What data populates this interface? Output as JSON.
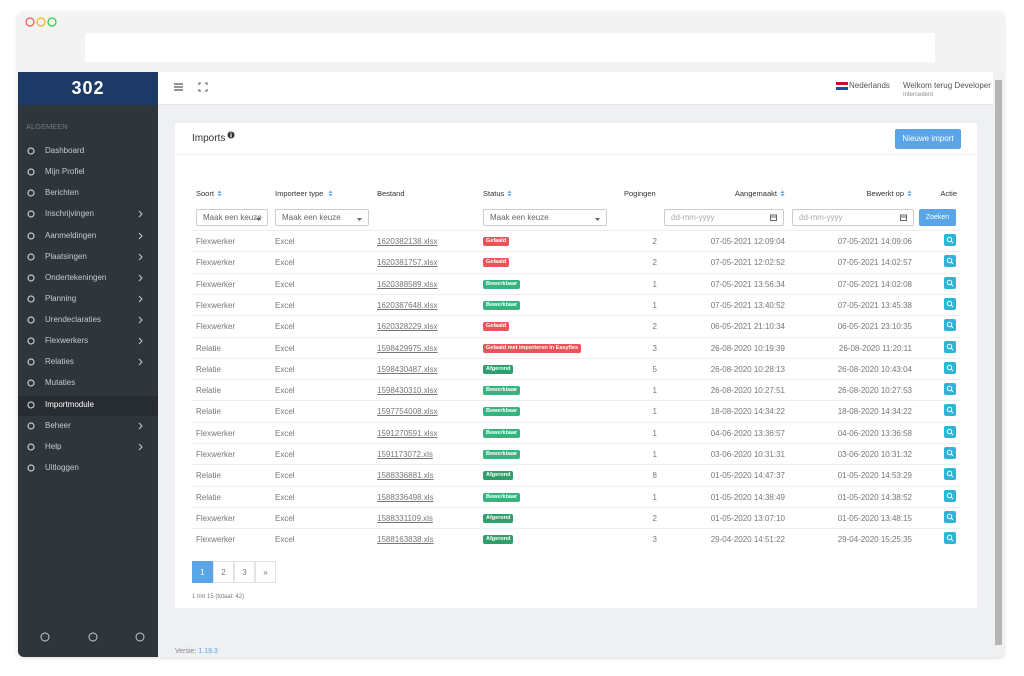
{
  "sidebar": {
    "logo": "302",
    "section": "ALGEMEEN",
    "items": [
      {
        "label": "Dashboard",
        "submenu": false
      },
      {
        "label": "Mijn Profiel",
        "submenu": false
      },
      {
        "label": "Berichten",
        "submenu": false
      },
      {
        "label": "Inschrijvingen",
        "submenu": true
      },
      {
        "label": "Aanmeldingen",
        "submenu": true
      },
      {
        "label": "Plaatsingen",
        "submenu": true
      },
      {
        "label": "Ondertekeningen",
        "submenu": true
      },
      {
        "label": "Planning",
        "submenu": true
      },
      {
        "label": "Urendeclaraties",
        "submenu": true
      },
      {
        "label": "Flexwerkers",
        "submenu": true
      },
      {
        "label": "Relaties",
        "submenu": true
      },
      {
        "label": "Mutaties",
        "submenu": false
      },
      {
        "label": "Importmodule",
        "submenu": false,
        "active": true
      },
      {
        "label": "Beheer",
        "submenu": true
      },
      {
        "label": "Help",
        "submenu": true
      },
      {
        "label": "Uitloggen",
        "submenu": false
      }
    ]
  },
  "header": {
    "language": "Nederlands",
    "welcome": "Welkom terug Developer",
    "role": "Intercedent"
  },
  "card": {
    "title": "Imports",
    "button": "Nieuwe import"
  },
  "table": {
    "columns": [
      "Soort",
      "Importeer type",
      "Bestand",
      "Status",
      "Pogingen",
      "Aangemaakt",
      "Bewerkt op",
      "Actie"
    ],
    "filters": {
      "select": [
        "Maak een keuze",
        "Maak een keuze",
        "Maak een keuze"
      ],
      "date": [
        "dd-mm-yyyy",
        "dd-mm-yyyy"
      ],
      "search": "Zoeken"
    },
    "rows": [
      [
        "Flexwerker",
        "Excel",
        "1620382138.xlsx",
        "Gefaald",
        "2",
        "07-05-2021 12:09:04",
        "07-05-2021 14:09:06"
      ],
      [
        "Flexwerker",
        "Excel",
        "1620381757.xlsx",
        "Gefaald",
        "2",
        "07-05-2021 12:02:52",
        "07-05-2021 14:02:57"
      ],
      [
        "Flexwerker",
        "Excel",
        "1620388589.xlsx",
        "Bewerkbaar",
        "1",
        "07-05-2021 13:56:34",
        "07-05-2021 14:02:08"
      ],
      [
        "Flexwerker",
        "Excel",
        "1620387648.xlsx",
        "Bewerkbaar",
        "1",
        "07-05-2021 13:40:52",
        "07-05-2021 13:45:38"
      ],
      [
        "Flexwerker",
        "Excel",
        "1620328229.xlsx",
        "Gefaald",
        "2",
        "06-05-2021 21:10:34",
        "06-05-2021 23:10:35"
      ],
      [
        "Relatie",
        "Excel",
        "1598429975.xlsx",
        "Gefaald met importeren in Easyflex",
        "3",
        "26-08-2020 10:19:39",
        "26-08-2020 11:20:11"
      ],
      [
        "Relatie",
        "Excel",
        "1598430487.xlsx",
        "Afgerond",
        "5",
        "26-08-2020 10:28:13",
        "26-08-2020 10:43:04"
      ],
      [
        "Relatie",
        "Excel",
        "1598430310.xlsx",
        "Bewerkbaar",
        "1",
        "26-08-2020 10:27:51",
        "26-08-2020 10:27:53"
      ],
      [
        "Relatie",
        "Excel",
        "1597754008.xlsx",
        "Bewerkbaar",
        "1",
        "18-08-2020 14:34:22",
        "18-08-2020 14:34:22"
      ],
      [
        "Flexwerker",
        "Excel",
        "1591270591.xlsx",
        "Bewerkbaar",
        "1",
        "04-06-2020 13:36:57",
        "04-06-2020 13:36:58"
      ],
      [
        "Flexwerker",
        "Excel",
        "1591173072.xls",
        "Bewerkbaar",
        "1",
        "03-06-2020 10:31:31",
        "03-06-2020 10:31:32"
      ],
      [
        "Relatie",
        "Excel",
        "1588336881.xls",
        "Afgerond",
        "8",
        "01-05-2020 14:47:37",
        "01-05-2020 14:53:29"
      ],
      [
        "Relatie",
        "Excel",
        "1588336498.xls",
        "Bewerkbaar",
        "1",
        "01-05-2020 14:38:49",
        "01-05-2020 14:38:52"
      ],
      [
        "Flexwerker",
        "Excel",
        "1588331109.xls",
        "Afgerond",
        "2",
        "01-05-2020 13:07:10",
        "01-05-2020 13:48:15"
      ],
      [
        "Flexwerker",
        "Excel",
        "1588163838.xls",
        "Afgerond",
        "3",
        "29-04-2020 14:51:22",
        "29-04-2020 15:25:35"
      ]
    ],
    "status_colors": {
      "Gefaald": "#e8545a",
      "Gefaald met importeren in Easyflex": "#e8545a",
      "Bewerkbaar": "#36b37e",
      "Afgerond": "#2e9e6a"
    }
  },
  "pagination": {
    "pages": [
      "1",
      "2",
      "3",
      "»"
    ],
    "summary": "1 t/m 15 (totaal: 42)"
  },
  "footer": {
    "label": "Versie:",
    "version": "1.19.3"
  }
}
